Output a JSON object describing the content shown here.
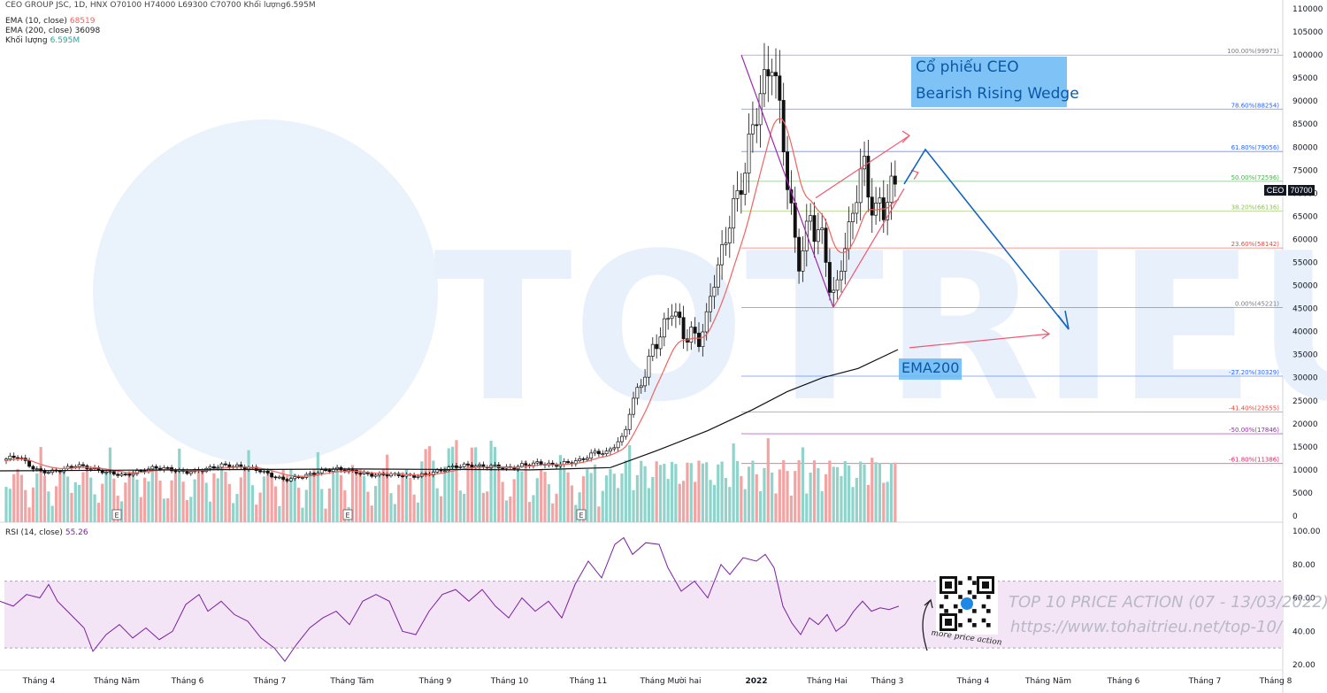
{
  "header": {
    "symbol_line": "CEO GROUP JSC, 1D, HNX  O70100  H74000  L69300  C70700  Khối lượng6.595M",
    "ema10_label": "EMA (10, close)",
    "ema10_value": "68519",
    "ema200_label": "EMA (200, close)",
    "ema200_value": "36098",
    "volume_label": "Khối lượng",
    "volume_value": "6.595M",
    "rsi_label": "RSI (14, close)",
    "rsi_value": "55.26"
  },
  "annotations": {
    "title_line1": "Cổ phiếu CEO",
    "title_line2": "Bearish Rising Wedge",
    "ema_label": "EMA200",
    "watermark_line1": "TOP 10 PRICE ACTION (07 - 13/03/2022)",
    "watermark_line2": "https://www.tohaitrieu.net/top-10/",
    "more_label": "more price action"
  },
  "tags": {
    "symbol": "CEO",
    "last_price": "70700"
  },
  "colors": {
    "up": "#26a69a",
    "down": "#ef5350",
    "vol_up": "#8fd3cb",
    "vol_down": "#f4a3a3",
    "ema10": "#f0635f",
    "ema200": "#111111",
    "rsi": "#7b1fa2",
    "rsi_band": "#f3e5f5",
    "projection": "#1565c0",
    "wedge": "#f05870",
    "fib_fall": "#9c27b0"
  },
  "chart_data": [
    {
      "type": "candlestick",
      "title": "CEO GROUP JSC, 1D, HNX",
      "x_labels": [
        "Tháng 4",
        "Tháng Năm",
        "Tháng 6",
        "Tháng 7",
        "Tháng Tám",
        "Tháng 9",
        "Tháng 10",
        "Tháng 11",
        "Tháng Mười hai",
        "2022",
        "Tháng Hai",
        "Tháng 3",
        "Tháng 4",
        "Tháng Năm",
        "Tháng 6",
        "Tháng 7",
        "Tháng 8"
      ],
      "y_ticks": [
        0,
        5000,
        10000,
        15000,
        20000,
        25000,
        30000,
        35000,
        40000,
        45000,
        50000,
        55000,
        60000,
        65000,
        70000,
        75000,
        80000,
        85000,
        90000,
        95000,
        100000,
        105000,
        110000
      ],
      "ylim": [
        0,
        110000
      ],
      "last_price": 70700,
      "price_path": [
        [
          0,
          12000
        ],
        [
          10,
          12500
        ],
        [
          20,
          13000
        ],
        [
          30,
          11500
        ],
        [
          40,
          10000
        ],
        [
          55,
          9500
        ],
        [
          70,
          10000
        ],
        [
          85,
          11000
        ],
        [
          100,
          10500
        ],
        [
          120,
          9500
        ],
        [
          140,
          8800
        ],
        [
          160,
          9800
        ],
        [
          175,
          10500
        ],
        [
          190,
          10200
        ],
        [
          210,
          9500
        ],
        [
          230,
          10000
        ],
        [
          250,
          11000
        ],
        [
          265,
          10800
        ],
        [
          280,
          10500
        ],
        [
          295,
          9800
        ],
        [
          310,
          8500
        ],
        [
          322,
          7800
        ],
        [
          335,
          8300
        ],
        [
          350,
          9000
        ],
        [
          365,
          9800
        ],
        [
          380,
          10200
        ],
        [
          395,
          9800
        ],
        [
          410,
          9200
        ],
        [
          420,
          8900
        ],
        [
          440,
          9000
        ],
        [
          460,
          8800
        ],
        [
          470,
          8600
        ],
        [
          485,
          9200
        ],
        [
          500,
          10000
        ],
        [
          515,
          10800
        ],
        [
          530,
          11000
        ],
        [
          545,
          10700
        ],
        [
          560,
          10800
        ],
        [
          575,
          10300
        ],
        [
          590,
          11000
        ],
        [
          610,
          11500
        ],
        [
          625,
          11000
        ],
        [
          640,
          11500
        ],
        [
          655,
          12000
        ],
        [
          665,
          13000
        ],
        [
          675,
          14000
        ],
        [
          685,
          13500
        ],
        [
          695,
          15500
        ],
        [
          705,
          17000
        ],
        [
          712,
          23000
        ],
        [
          722,
          28000
        ],
        [
          730,
          31000
        ],
        [
          738,
          37000
        ],
        [
          745,
          38000
        ],
        [
          752,
          42000
        ],
        [
          760,
          45000
        ],
        [
          768,
          42000
        ],
        [
          775,
          38000
        ],
        [
          782,
          40000
        ],
        [
          790,
          38000
        ],
        [
          798,
          42000
        ],
        [
          805,
          50000
        ],
        [
          812,
          54000
        ],
        [
          820,
          60000
        ],
        [
          827,
          66000
        ],
        [
          835,
          70000
        ],
        [
          842,
          75000
        ],
        [
          850,
          84000
        ],
        [
          858,
          90000
        ],
        [
          866,
          95000
        ],
        [
          872,
          100000
        ],
        [
          878,
          92000
        ],
        [
          884,
          85000
        ],
        [
          890,
          72000
        ],
        [
          897,
          62000
        ],
        [
          904,
          54000
        ],
        [
          910,
          60000
        ],
        [
          916,
          66000
        ],
        [
          922,
          60000
        ],
        [
          928,
          62000
        ],
        [
          934,
          56000
        ],
        [
          940,
          46000
        ],
        [
          946,
          50000
        ],
        [
          952,
          56000
        ],
        [
          958,
          60000
        ],
        [
          964,
          66000
        ],
        [
          970,
          72000
        ],
        [
          976,
          77000
        ],
        [
          982,
          70000
        ],
        [
          988,
          65000
        ],
        [
          994,
          68000
        ],
        [
          1000,
          66000
        ],
        [
          1006,
          71000
        ],
        [
          1012,
          72000
        ],
        [
          1016,
          70700
        ]
      ],
      "ema200_path": [
        [
          0,
          9800
        ],
        [
          200,
          10000
        ],
        [
          400,
          10200
        ],
        [
          600,
          10000
        ],
        [
          690,
          10500
        ],
        [
          740,
          14000
        ],
        [
          800,
          18500
        ],
        [
          850,
          23000
        ],
        [
          890,
          27000
        ],
        [
          930,
          30000
        ],
        [
          970,
          32000
        ],
        [
          1015,
          36098
        ]
      ],
      "fib_levels": [
        {
          "label": "100.00%(99971)",
          "value": 99971,
          "color": "#787b86"
        },
        {
          "label": "78.60%(88254)",
          "value": 88254,
          "color": "#2962ff"
        },
        {
          "label": "61.80%(79056)",
          "value": 79056,
          "color": "#2962ff"
        },
        {
          "label": "50.00%(72596)",
          "value": 72596,
          "color": "#4caf50"
        },
        {
          "label": "38.20%(66136)",
          "value": 66136,
          "color": "#8bc34a"
        },
        {
          "label": "23.60%(58142)",
          "value": 58142,
          "color": "#f44336"
        },
        {
          "label": "0.00%(45221)",
          "value": 45221,
          "color": "#787b86"
        },
        {
          "label": "-27.20%(30329)",
          "value": 30329,
          "color": "#2962ff"
        },
        {
          "label": "-41.40%(22555)",
          "value": 22555,
          "color": "#f44336"
        },
        {
          "label": "-50.00%(17846)",
          "value": 17846,
          "color": "#9c27b0"
        },
        {
          "label": "-61.80%(11386)",
          "value": 11386,
          "color": "#e91e63"
        }
      ],
      "earnings_markers": [
        "E",
        "E",
        "E"
      ]
    },
    {
      "type": "line",
      "title": "RSI (14, close)",
      "y_ticks": [
        20,
        40,
        60,
        80,
        100
      ],
      "ylim": [
        20,
        100
      ],
      "band": [
        30,
        70
      ],
      "rsi_path": [
        [
          0,
          58
        ],
        [
          15,
          55
        ],
        [
          30,
          62
        ],
        [
          45,
          60
        ],
        [
          55,
          68
        ],
        [
          65,
          58
        ],
        [
          80,
          50
        ],
        [
          95,
          42
        ],
        [
          105,
          28
        ],
        [
          120,
          38
        ],
        [
          135,
          44
        ],
        [
          150,
          36
        ],
        [
          165,
          42
        ],
        [
          180,
          35
        ],
        [
          195,
          40
        ],
        [
          210,
          56
        ],
        [
          225,
          62
        ],
        [
          235,
          52
        ],
        [
          250,
          58
        ],
        [
          265,
          50
        ],
        [
          280,
          46
        ],
        [
          295,
          36
        ],
        [
          310,
          30
        ],
        [
          322,
          22
        ],
        [
          335,
          32
        ],
        [
          350,
          42
        ],
        [
          365,
          48
        ],
        [
          380,
          52
        ],
        [
          395,
          44
        ],
        [
          410,
          58
        ],
        [
          425,
          62
        ],
        [
          440,
          58
        ],
        [
          455,
          40
        ],
        [
          470,
          38
        ],
        [
          485,
          52
        ],
        [
          500,
          62
        ],
        [
          515,
          65
        ],
        [
          530,
          58
        ],
        [
          545,
          65
        ],
        [
          560,
          55
        ],
        [
          575,
          48
        ],
        [
          590,
          60
        ],
        [
          605,
          52
        ],
        [
          620,
          58
        ],
        [
          635,
          48
        ],
        [
          650,
          68
        ],
        [
          665,
          82
        ],
        [
          680,
          72
        ],
        [
          695,
          92
        ],
        [
          705,
          96
        ],
        [
          715,
          86
        ],
        [
          730,
          93
        ],
        [
          745,
          92
        ],
        [
          755,
          78
        ],
        [
          770,
          64
        ],
        [
          785,
          70
        ],
        [
          800,
          60
        ],
        [
          815,
          80
        ],
        [
          825,
          74
        ],
        [
          840,
          84
        ],
        [
          855,
          82
        ],
        [
          865,
          86
        ],
        [
          875,
          78
        ],
        [
          885,
          55
        ],
        [
          895,
          45
        ],
        [
          905,
          38
        ],
        [
          915,
          48
        ],
        [
          925,
          44
        ],
        [
          935,
          50
        ],
        [
          945,
          40
        ],
        [
          955,
          44
        ],
        [
          965,
          52
        ],
        [
          975,
          58
        ],
        [
          985,
          52
        ],
        [
          995,
          54
        ],
        [
          1005,
          53
        ],
        [
          1016,
          55
        ]
      ]
    }
  ]
}
